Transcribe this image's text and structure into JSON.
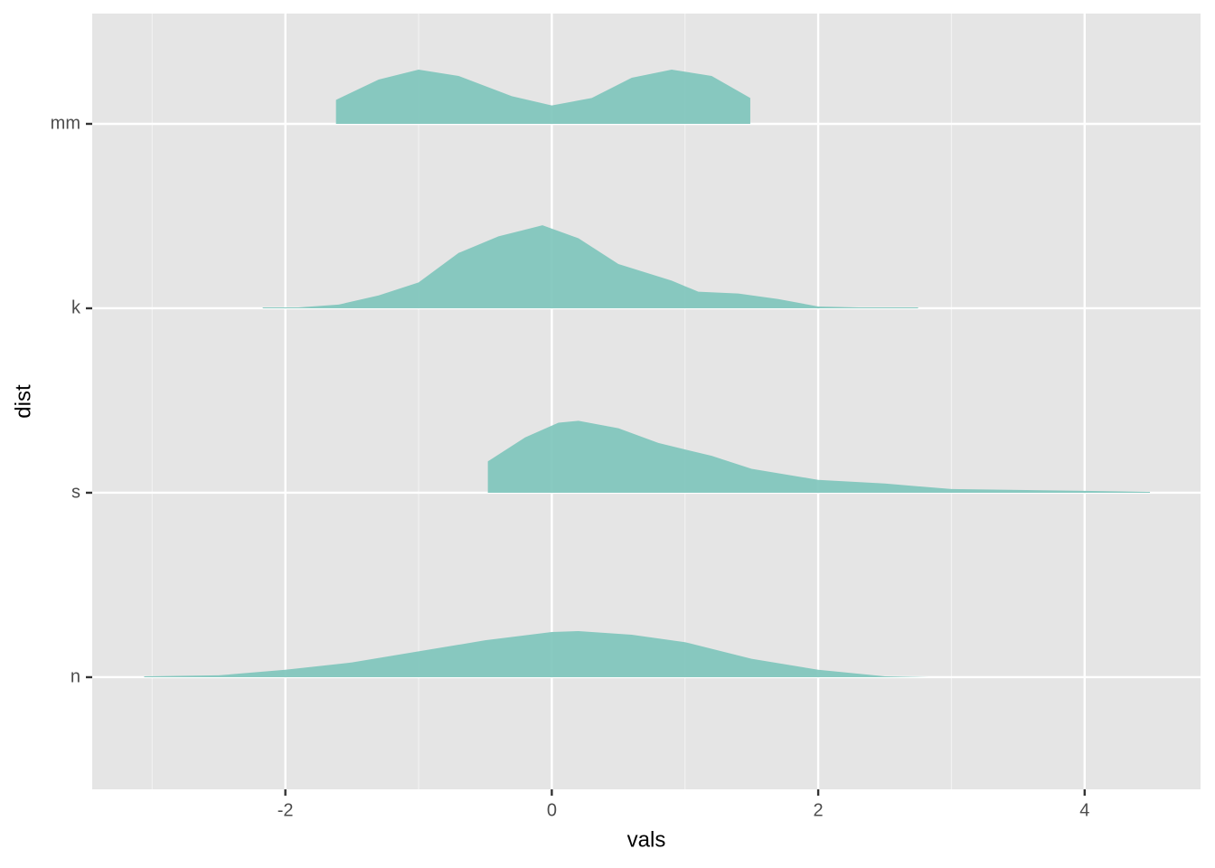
{
  "chart_data": {
    "type": "ridgeline",
    "x_label": "vals",
    "y_label": "dist",
    "categories": [
      "n",
      "s",
      "k",
      "mm"
    ],
    "color": "#7fc6bc",
    "ridges": [
      {
        "x": [
          -3.06,
          -2.5,
          -2.0,
          -1.5,
          -1.0,
          -0.5,
          0.0,
          0.2,
          0.6,
          1.0,
          1.5,
          2.0,
          2.5,
          2.83
        ],
        "values": [
          0.005,
          0.01,
          0.04,
          0.08,
          0.14,
          0.2,
          0.245,
          0.25,
          0.23,
          0.19,
          0.1,
          0.04,
          0.005,
          0
        ]
      },
      {
        "x": [
          -0.48,
          -0.2,
          0.05,
          0.2,
          0.5,
          0.8,
          1.2,
          1.5,
          2.0,
          2.5,
          3.0,
          3.5,
          4.0,
          4.49
        ],
        "values": [
          0.17,
          0.3,
          0.38,
          0.39,
          0.35,
          0.27,
          0.2,
          0.13,
          0.07,
          0.05,
          0.02,
          0.015,
          0.01,
          0.005
        ]
      },
      {
        "x": [
          -2.17,
          -1.9,
          -1.6,
          -1.3,
          -1.0,
          -0.7,
          -0.4,
          -0.07,
          0.2,
          0.5,
          0.9,
          1.1,
          1.4,
          1.7,
          2.0,
          2.3,
          2.75
        ],
        "values": [
          0.005,
          0.005,
          0.02,
          0.07,
          0.14,
          0.3,
          0.39,
          0.45,
          0.38,
          0.24,
          0.15,
          0.09,
          0.08,
          0.05,
          0.01,
          0.005,
          0.005
        ]
      },
      {
        "x": [
          -1.62,
          -1.3,
          -1.0,
          -0.7,
          -0.3,
          0.0,
          0.3,
          0.6,
          0.9,
          1.2,
          1.49
        ],
        "values": [
          0.13,
          0.24,
          0.294,
          0.26,
          0.15,
          0.1,
          0.14,
          0.25,
          0.294,
          0.26,
          0.14
        ]
      }
    ],
    "xlim": [
      -3.45,
      4.87
    ],
    "xticks": [
      -2,
      0,
      2,
      4
    ],
    "xminorticks": [
      -3,
      -1,
      1,
      3
    ],
    "ylim": [
      0.392,
      4.598
    ],
    "grid": true
  }
}
